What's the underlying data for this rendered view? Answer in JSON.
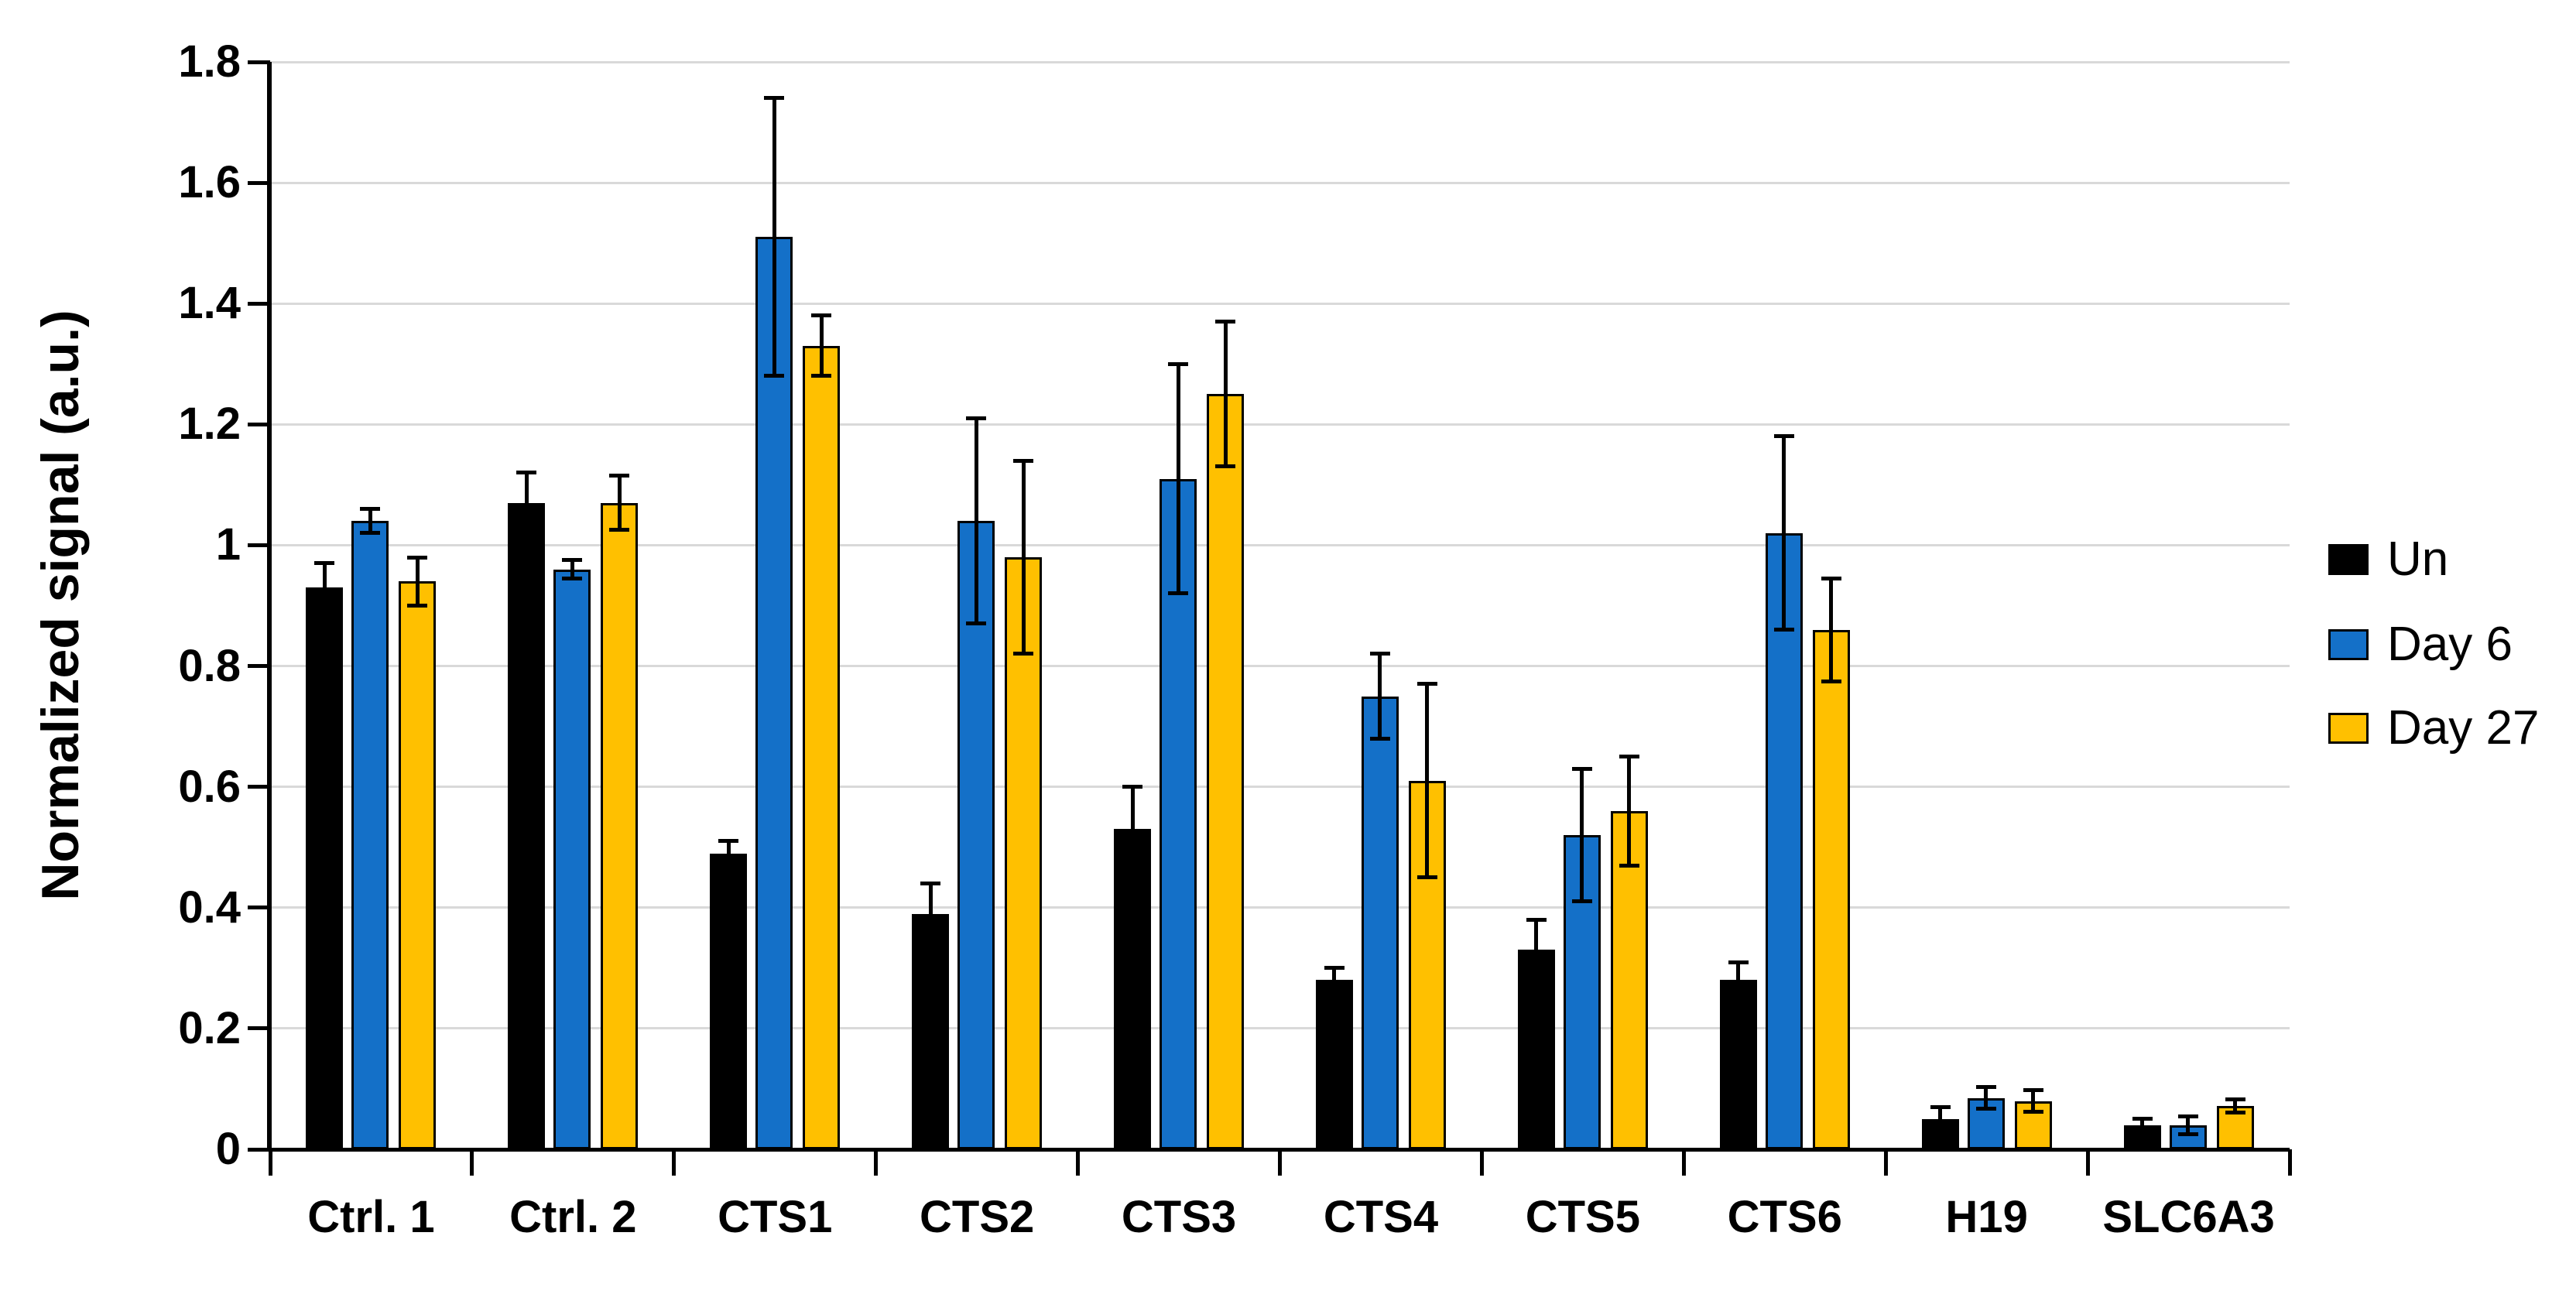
{
  "chart_data": {
    "type": "bar",
    "title": "",
    "ylabel": "Normalized signal (a.u.)",
    "xlabel": "",
    "ylim": [
      0,
      1.8
    ],
    "ytick_step": 0.2,
    "ytick_labels": [
      "0",
      "0.2",
      "0.4",
      "0.6",
      "0.8",
      "1",
      "1.2",
      "1.4",
      "1.6",
      "1.8"
    ],
    "grid": "horizontal-light",
    "legend_position": "right",
    "error_bars": true,
    "categories": [
      "Ctrl. 1",
      "Ctrl. 2",
      "CTS1",
      "CTS2",
      "CTS3",
      "CTS4",
      "CTS5",
      "CTS6",
      "H19",
      "SLC6A3"
    ],
    "series": [
      {
        "name": "Un",
        "color": "#000000",
        "values": [
          0.93,
          1.07,
          0.49,
          0.39,
          0.53,
          0.28,
          0.33,
          0.28,
          0.05,
          0.04
        ],
        "errors": [
          0.04,
          0.05,
          0.02,
          0.05,
          0.07,
          0.02,
          0.05,
          0.03,
          0.02,
          0.01
        ]
      },
      {
        "name": "Day 6",
        "color": "#1470C8",
        "values": [
          1.04,
          0.96,
          1.51,
          1.04,
          1.11,
          0.75,
          0.52,
          1.02,
          0.085,
          0.04
        ],
        "errors": [
          0.02,
          0.015,
          0.23,
          0.17,
          0.19,
          0.07,
          0.11,
          0.16,
          0.018,
          0.015
        ]
      },
      {
        "name": "Day 27",
        "color": "#FFC000",
        "values": [
          0.94,
          1.07,
          1.33,
          0.98,
          1.25,
          0.61,
          0.56,
          0.86,
          0.08,
          0.072
        ],
        "errors": [
          0.04,
          0.045,
          0.05,
          0.16,
          0.12,
          0.16,
          0.09,
          0.085,
          0.018,
          0.011
        ]
      }
    ],
    "style": {
      "background": "#FFFFFF",
      "axis_color": "#000000",
      "gridline_color": "#D9D9D9",
      "bar_border_color": "#000000",
      "error_bar_color": "#000000",
      "text_color": "#000000"
    }
  }
}
